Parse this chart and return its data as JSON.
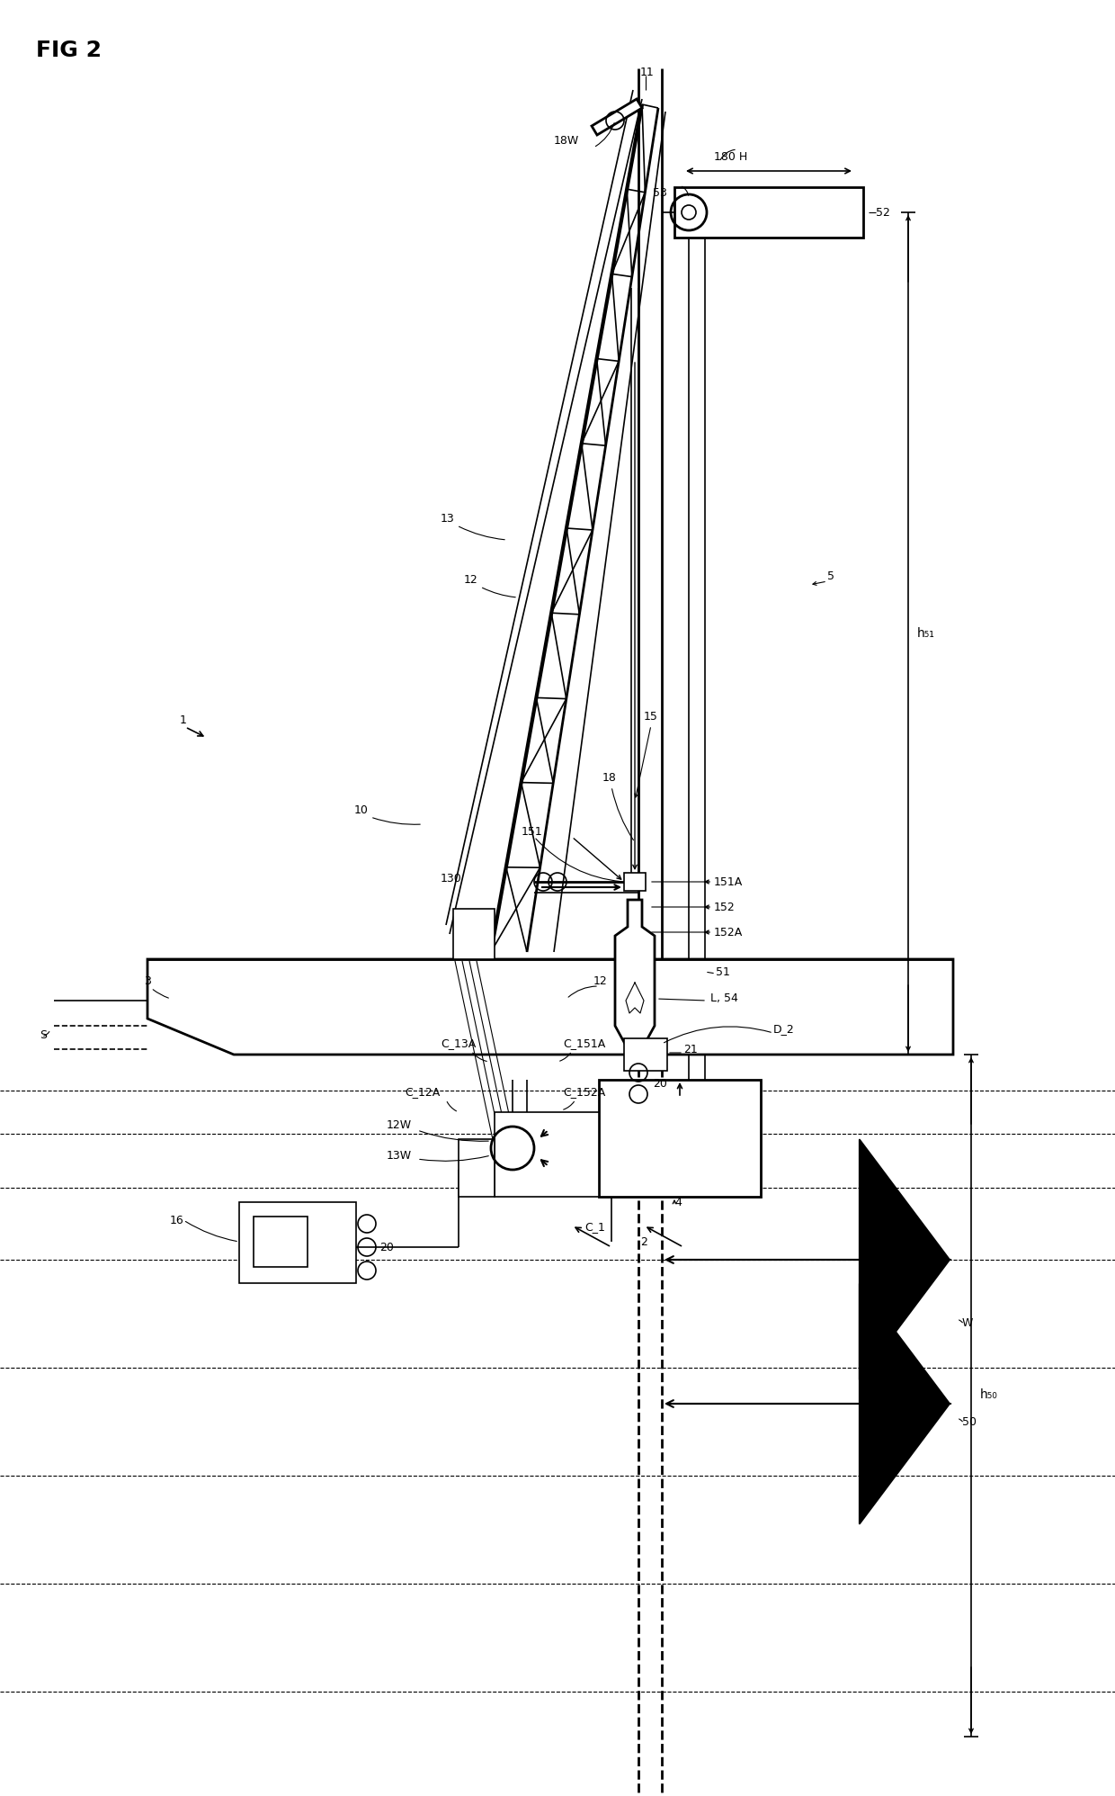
{
  "bg_color": "#ffffff",
  "line_color": "#000000",
  "fig_width": 12.4,
  "fig_height": 19.96,
  "dpi": 100,
  "labels": {
    "fig_title": "FIG 2",
    "n1": "1",
    "n2": "2",
    "n3": "3",
    "n4": "4",
    "n5": "5",
    "n10": "10",
    "n11": "11",
    "n12a": "12",
    "n12b": "12",
    "n13": "13",
    "n15": "15",
    "n16": "16",
    "n18": "18",
    "n18W": "18W",
    "n20a": "20",
    "n20b": "20",
    "n21": "21",
    "n51": "51",
    "n52": "52",
    "n53": "53",
    "n54": "L, 54",
    "n130": "130",
    "n151": "151",
    "n151A": "151A",
    "n152": "152",
    "n152A": "152A",
    "n180H": "180 H",
    "n12W": "12W",
    "n13W": "13W",
    "nC1": "C_1",
    "nC12A": "C_12A",
    "nC13A": "C_13A",
    "nC151A": "C_151A",
    "nC152A": "C_152A",
    "nD2": "D_2",
    "nh50": "h₅₀",
    "nh51": "h₅₁",
    "nS": "S",
    "nW": "W",
    "n50": "50"
  }
}
